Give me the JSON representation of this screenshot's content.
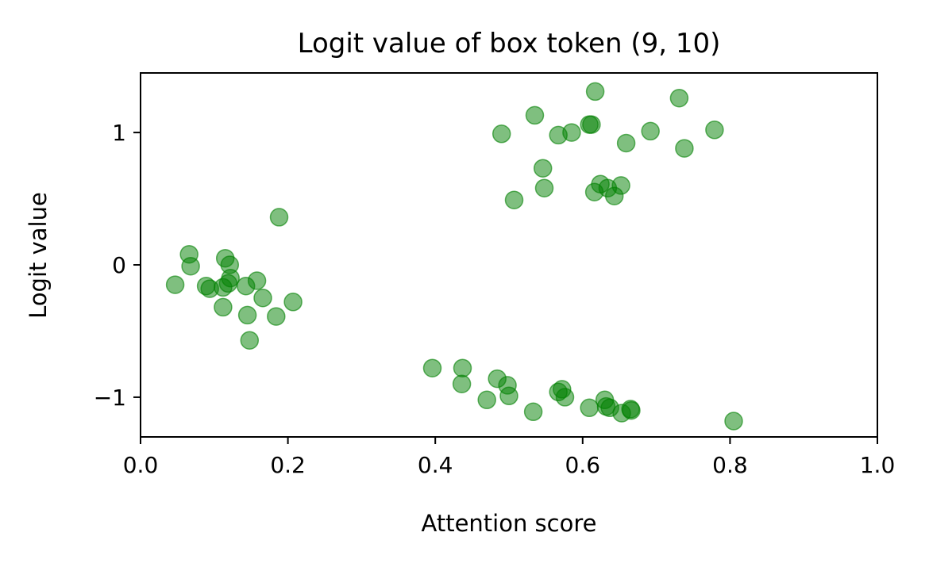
{
  "chart_data": {
    "type": "scatter",
    "title": "Logit value of box token (9, 10)",
    "xlabel": "Attention score",
    "ylabel": "Logit value",
    "xlim": [
      0.0,
      1.0
    ],
    "ylim": [
      -1.3,
      1.45
    ],
    "xticks": [
      0.0,
      0.2,
      0.4,
      0.6,
      0.8,
      1.0
    ],
    "xtick_labels": [
      "0.0",
      "0.2",
      "0.4",
      "0.6",
      "0.8",
      "1.0"
    ],
    "yticks": [
      1,
      0,
      -1
    ],
    "ytick_labels": [
      "1",
      "0",
      "−1"
    ],
    "grid": false,
    "legend": "none",
    "marker_color": "#008000",
    "marker_alpha": 0.5,
    "series": [
      {
        "x": [
          0.617,
          0.731,
          0.535,
          0.609,
          0.612,
          0.49,
          0.567,
          0.585,
          0.692,
          0.779,
          0.659,
          0.738,
          0.546,
          0.624,
          0.634,
          0.652,
          0.616,
          0.643,
          0.548,
          0.507,
          0.066,
          0.115,
          0.121,
          0.068,
          0.047,
          0.122,
          0.158,
          0.089,
          0.094,
          0.112,
          0.119,
          0.143,
          0.166,
          0.207,
          0.112,
          0.145,
          0.184,
          0.148,
          0.188,
          0.396,
          0.437,
          0.484,
          0.436,
          0.498,
          0.47,
          0.5,
          0.533,
          0.567,
          0.572,
          0.576,
          0.609,
          0.63,
          0.632,
          0.637,
          0.653,
          0.665,
          0.666,
          0.805
        ],
        "y": [
          1.31,
          1.26,
          1.13,
          1.06,
          1.06,
          0.99,
          0.98,
          1.0,
          1.01,
          1.02,
          0.92,
          0.88,
          0.73,
          0.61,
          0.58,
          0.6,
          0.55,
          0.52,
          0.58,
          0.49,
          0.08,
          0.05,
          0.0,
          -0.01,
          -0.15,
          -0.1,
          -0.12,
          -0.16,
          -0.18,
          -0.17,
          -0.14,
          -0.16,
          -0.25,
          -0.28,
          -0.32,
          -0.38,
          -0.39,
          -0.57,
          0.36,
          -0.78,
          -0.78,
          -0.86,
          -0.9,
          -0.91,
          -1.02,
          -0.99,
          -1.11,
          -0.96,
          -0.94,
          -1.0,
          -1.08,
          -1.02,
          -1.07,
          -1.08,
          -1.12,
          -1.09,
          -1.1,
          -1.18
        ]
      }
    ]
  }
}
